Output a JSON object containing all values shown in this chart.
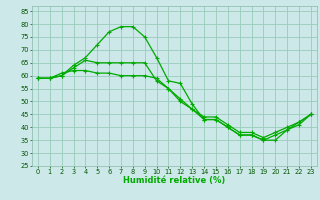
{
  "xlabel": "Humidité relative (%)",
  "background_color": "#cce8e8",
  "grid_color": "#99ccbb",
  "line_color": "#00aa00",
  "xlim": [
    -0.5,
    23.5
  ],
  "ylim": [
    25,
    87
  ],
  "yticks": [
    25,
    30,
    35,
    40,
    45,
    50,
    55,
    60,
    65,
    70,
    75,
    80,
    85
  ],
  "xticks": [
    0,
    1,
    2,
    3,
    4,
    5,
    6,
    7,
    8,
    9,
    10,
    11,
    12,
    13,
    14,
    15,
    16,
    17,
    18,
    19,
    20,
    21,
    22,
    23
  ],
  "line1_x": [
    0,
    1,
    2,
    3,
    4,
    5,
    6,
    7,
    8,
    9,
    10,
    11,
    12,
    13,
    14,
    15,
    16,
    17,
    18,
    19,
    20,
    21,
    22,
    23
  ],
  "line1_y": [
    59,
    59,
    60,
    64,
    67,
    72,
    77,
    79,
    79,
    75,
    67,
    58,
    57,
    49,
    43,
    43,
    40,
    37,
    37,
    35,
    35,
    39,
    42,
    45
  ],
  "line2_x": [
    0,
    1,
    2,
    3,
    4,
    5,
    6,
    7,
    8,
    9,
    10,
    11,
    12,
    13,
    14,
    15,
    16,
    17,
    18,
    19,
    20,
    21,
    22,
    23
  ],
  "line2_y": [
    59,
    59,
    60,
    63,
    66,
    65,
    65,
    65,
    65,
    65,
    58,
    55,
    50,
    47,
    43,
    43,
    40,
    37,
    37,
    35,
    37,
    39,
    41,
    45
  ],
  "line3_x": [
    0,
    1,
    2,
    3,
    4,
    5,
    6,
    7,
    8,
    9,
    10,
    11,
    12,
    13,
    14,
    15,
    16,
    17,
    18,
    19,
    20,
    21,
    22,
    23
  ],
  "line3_y": [
    59,
    59,
    61,
    62,
    62,
    61,
    61,
    60,
    60,
    60,
    59,
    55,
    51,
    47,
    44,
    44,
    41,
    38,
    38,
    36,
    38,
    40,
    42,
    45
  ],
  "xlabel_fontsize": 6.0,
  "tick_fontsize": 4.8,
  "linewidth": 0.9,
  "marker_size": 2.5
}
